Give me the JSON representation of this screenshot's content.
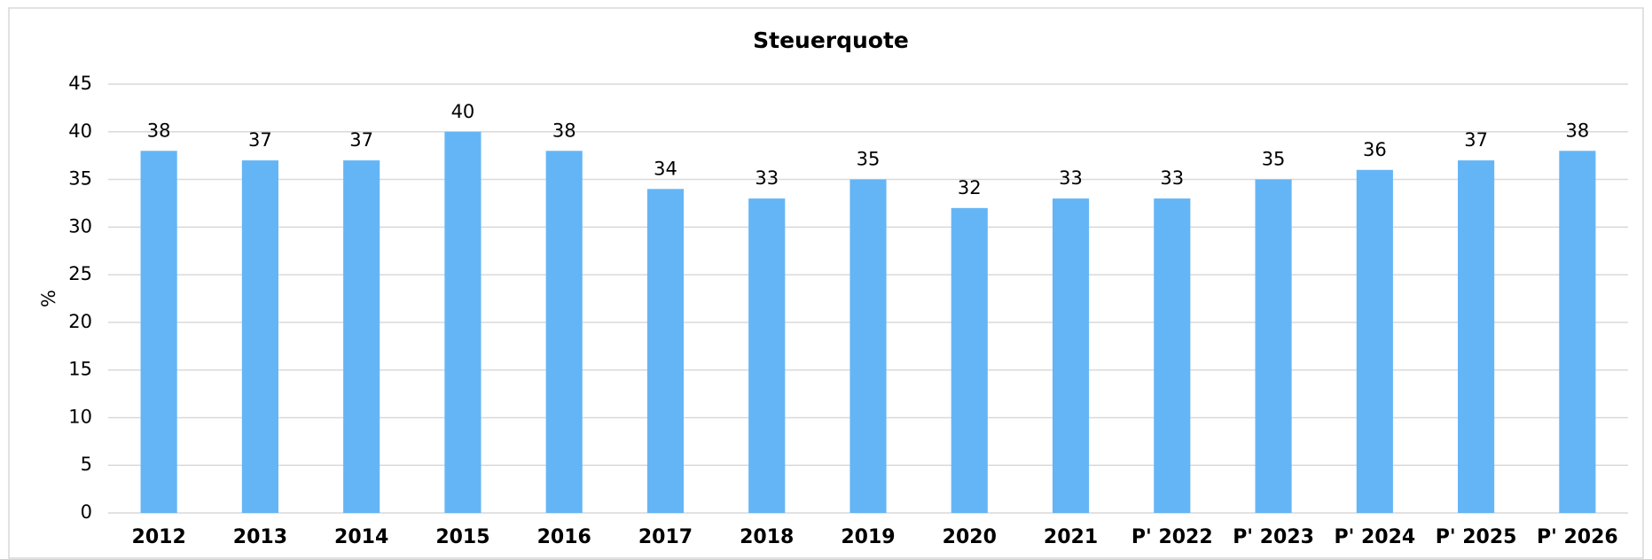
{
  "chart_data": {
    "type": "bar",
    "title": "Steuerquote",
    "y_label": "%",
    "categories": [
      "2012",
      "2013",
      "2014",
      "2015",
      "2016",
      "2017",
      "2018",
      "2019",
      "2020",
      "2021",
      "P' 2022",
      "P' 2023",
      "P' 2024",
      "P' 2025",
      "P' 2026"
    ],
    "values": [
      38,
      37,
      37,
      40,
      38,
      34,
      33,
      35,
      32,
      33,
      33,
      35,
      36,
      37,
      38
    ],
    "color": "#64b5f6",
    "ylim": [
      0,
      45
    ],
    "yticks": [
      0,
      5,
      10,
      15,
      20,
      25,
      30,
      35,
      40,
      45
    ],
    "grid": true
  }
}
